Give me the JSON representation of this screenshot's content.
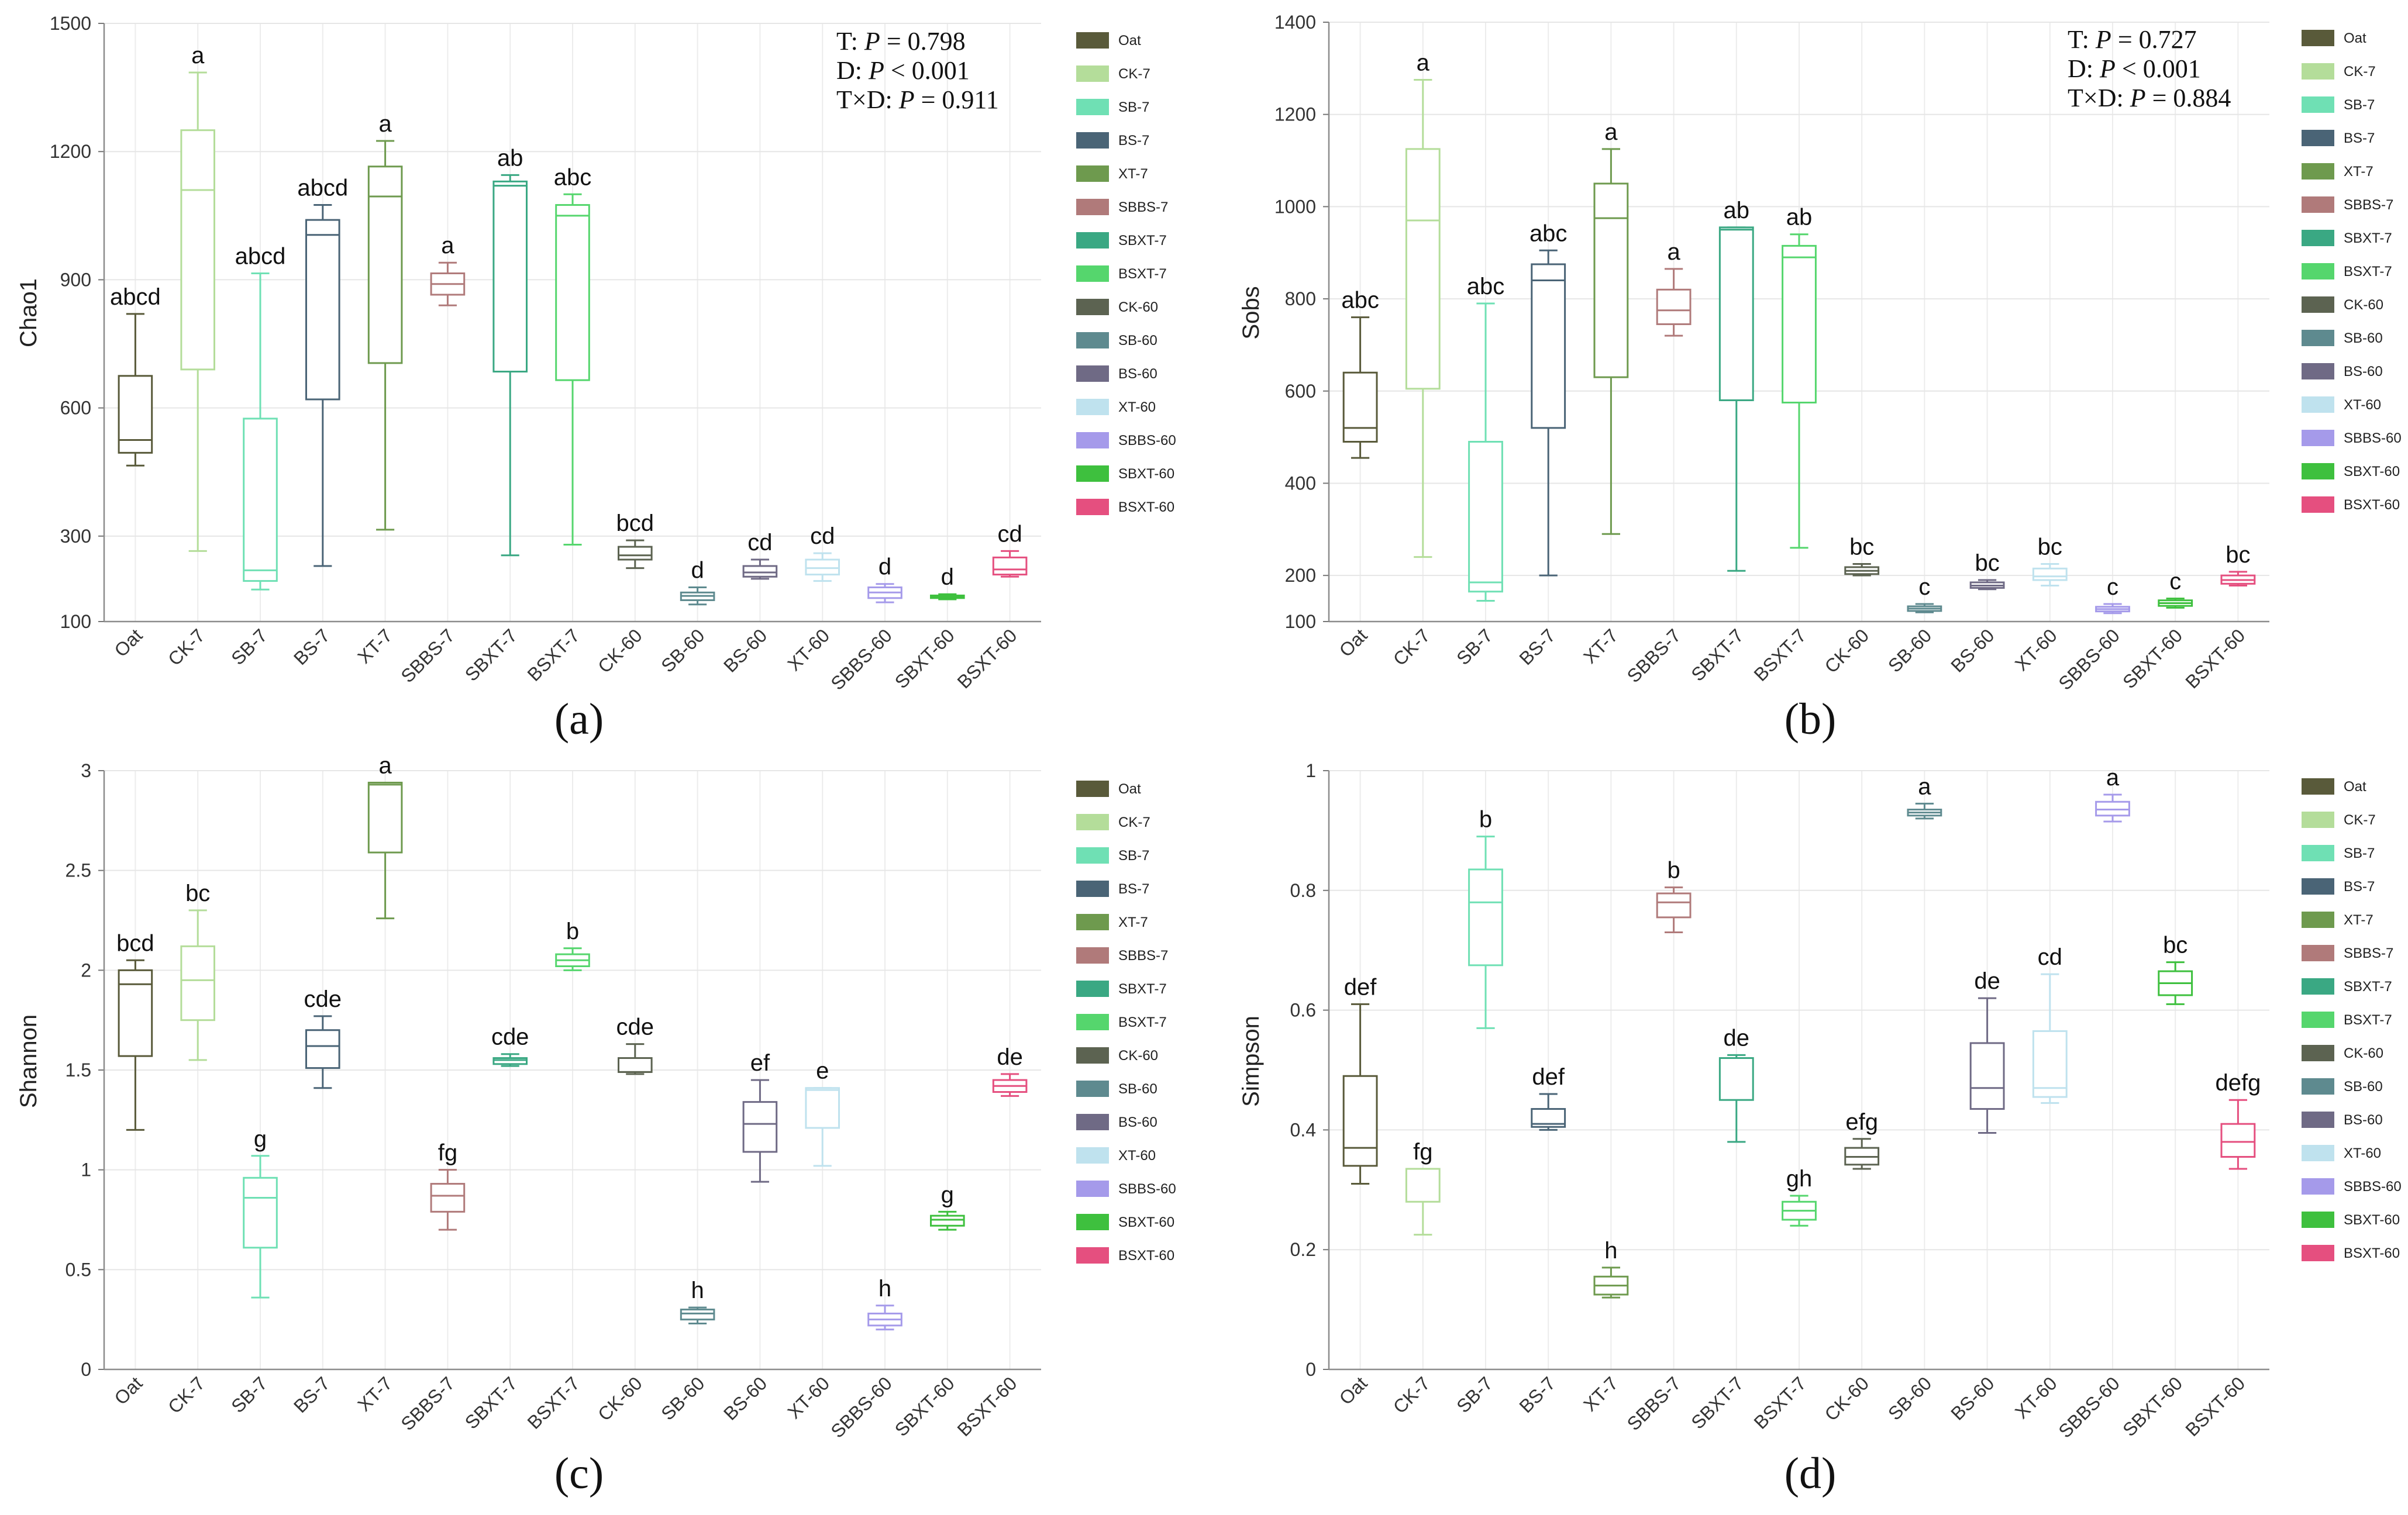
{
  "colors": {
    "Oat": "#595a3a",
    "CK-7": "#b4dd9a",
    "SB-7": "#6fe0b4",
    "BS-7": "#4a6476",
    "XT-7": "#6e9a4e",
    "SBBS-7": "#b07a7a",
    "SBXT-7": "#3aa883",
    "BSXT-7": "#55d66d",
    "CK-60": "#5c6351",
    "SB-60": "#5e8a8f",
    "BS-60": "#6f6a85",
    "XT-60": "#bfe2ee",
    "SBBS-60": "#a59aea",
    "SBXT-60": "#3ec03e",
    "BSXT-60": "#e54f7f"
  },
  "chart_data": [
    {
      "id": "a",
      "type": "box",
      "panel_label": "(a)",
      "ylabel": "Chao1",
      "ylim": [
        100,
        1500
      ],
      "yticks": [
        100,
        300,
        600,
        900,
        1200,
        1500
      ],
      "stats": {
        "l1": "T: ",
        "p1": "P",
        "v1": " = 0.798",
        "l2": "D: ",
        "p2": "P",
        "v2": " < 0.001",
        "l3": "T×D: ",
        "p3": "P",
        "v3": " = 0.911"
      },
      "categories": [
        "Oat",
        "CK-7",
        "SB-7",
        "BS-7",
        "XT-7",
        "SBBS-7",
        "SBXT-7",
        "BSXT-7",
        "CK-60",
        "SB-60",
        "BS-60",
        "XT-60",
        "SBBS-60",
        "SBXT-60",
        "BSXT-60"
      ],
      "boxes": [
        {
          "min": 465,
          "q1": 495,
          "med": 525,
          "q3": 675,
          "max": 820,
          "letter": "abcd"
        },
        {
          "min": 265,
          "q1": 690,
          "med": 1110,
          "q3": 1250,
          "max": 1385,
          "letter": "a"
        },
        {
          "min": 175,
          "q1": 195,
          "med": 220,
          "q3": 575,
          "max": 915,
          "letter": "abcd"
        },
        {
          "min": 230,
          "q1": 620,
          "med": 1005,
          "q3": 1040,
          "max": 1075,
          "letter": "abcd"
        },
        {
          "min": 315,
          "q1": 705,
          "med": 1095,
          "q3": 1165,
          "max": 1225,
          "letter": "a"
        },
        {
          "min": 840,
          "q1": 865,
          "med": 890,
          "q3": 915,
          "max": 940,
          "letter": "a"
        },
        {
          "min": 255,
          "q1": 685,
          "med": 1120,
          "q3": 1130,
          "max": 1145,
          "letter": "ab"
        },
        {
          "min": 280,
          "q1": 665,
          "med": 1050,
          "q3": 1075,
          "max": 1100,
          "letter": "abc"
        },
        {
          "min": 225,
          "q1": 245,
          "med": 255,
          "q3": 275,
          "max": 290,
          "letter": "bcd"
        },
        {
          "min": 140,
          "q1": 150,
          "med": 160,
          "q3": 168,
          "max": 180,
          "letter": "d"
        },
        {
          "min": 200,
          "q1": 205,
          "med": 215,
          "q3": 230,
          "max": 245,
          "letter": "cd"
        },
        {
          "min": 195,
          "q1": 210,
          "med": 225,
          "q3": 245,
          "max": 260,
          "letter": "cd"
        },
        {
          "min": 145,
          "q1": 155,
          "med": 168,
          "q3": 180,
          "max": 188,
          "letter": "d"
        },
        {
          "min": 152,
          "q1": 155,
          "med": 158,
          "q3": 161,
          "max": 164,
          "letter": "d"
        },
        {
          "min": 205,
          "q1": 210,
          "med": 222,
          "q3": 250,
          "max": 265,
          "letter": "cd"
        }
      ]
    },
    {
      "id": "b",
      "type": "box",
      "panel_label": "(b)",
      "ylabel": "Sobs",
      "ylim": [
        100,
        1400
      ],
      "yticks": [
        100,
        200,
        400,
        600,
        800,
        1000,
        1200,
        1400
      ],
      "stats": {
        "l1": "T: ",
        "p1": "P",
        "v1": " = 0.727",
        "l2": "D: ",
        "p2": "P",
        "v2": " < 0.001",
        "l3": "T×D: ",
        "p3": "P",
        "v3": " = 0.884"
      },
      "categories": [
        "Oat",
        "CK-7",
        "SB-7",
        "BS-7",
        "XT-7",
        "SBBS-7",
        "SBXT-7",
        "BSXT-7",
        "CK-60",
        "SB-60",
        "BS-60",
        "XT-60",
        "SBBS-60",
        "SBXT-60",
        "BSXT-60"
      ],
      "boxes": [
        {
          "min": 455,
          "q1": 490,
          "med": 520,
          "q3": 640,
          "max": 760,
          "letter": "abc"
        },
        {
          "min": 240,
          "q1": 605,
          "med": 970,
          "q3": 1125,
          "max": 1275,
          "letter": "a"
        },
        {
          "min": 145,
          "q1": 165,
          "med": 185,
          "q3": 490,
          "max": 790,
          "letter": "abc"
        },
        {
          "min": 200,
          "q1": 520,
          "med": 840,
          "q3": 875,
          "max": 905,
          "letter": "abc"
        },
        {
          "min": 290,
          "q1": 630,
          "med": 975,
          "q3": 1050,
          "max": 1125,
          "letter": "a"
        },
        {
          "min": 720,
          "q1": 745,
          "med": 775,
          "q3": 820,
          "max": 865,
          "letter": "a"
        },
        {
          "min": 210,
          "q1": 580,
          "med": 950,
          "q3": 955,
          "max": 955,
          "letter": "ab"
        },
        {
          "min": 260,
          "q1": 575,
          "med": 890,
          "q3": 915,
          "max": 940,
          "letter": "ab"
        },
        {
          "min": 200,
          "q1": 203,
          "med": 210,
          "q3": 218,
          "max": 225,
          "letter": "bc"
        },
        {
          "min": 120,
          "q1": 123,
          "med": 128,
          "q3": 133,
          "max": 138,
          "letter": "c"
        },
        {
          "min": 170,
          "q1": 173,
          "med": 178,
          "q3": 185,
          "max": 190,
          "letter": "bc"
        },
        {
          "min": 178,
          "q1": 190,
          "med": 198,
          "q3": 215,
          "max": 225,
          "letter": "bc"
        },
        {
          "min": 118,
          "q1": 122,
          "med": 127,
          "q3": 132,
          "max": 138,
          "letter": "c"
        },
        {
          "min": 130,
          "q1": 134,
          "med": 140,
          "q3": 146,
          "max": 150,
          "letter": "c"
        },
        {
          "min": 178,
          "q1": 182,
          "med": 190,
          "q3": 200,
          "max": 208,
          "letter": "bc"
        }
      ]
    },
    {
      "id": "c",
      "type": "box",
      "panel_label": "(c)",
      "ylabel": "Shannon",
      "ylim": [
        0,
        3
      ],
      "yticks": [
        0,
        0.5,
        1,
        1.5,
        2,
        2.5,
        3
      ],
      "categories": [
        "Oat",
        "CK-7",
        "SB-7",
        "BS-7",
        "XT-7",
        "SBBS-7",
        "SBXT-7",
        "BSXT-7",
        "CK-60",
        "SB-60",
        "BS-60",
        "XT-60",
        "SBBS-60",
        "SBXT-60",
        "BSXT-60"
      ],
      "boxes": [
        {
          "min": 1.2,
          "q1": 1.57,
          "med": 1.93,
          "q3": 2.0,
          "max": 2.05,
          "letter": "bcd"
        },
        {
          "min": 1.55,
          "q1": 1.75,
          "med": 1.95,
          "q3": 2.12,
          "max": 2.3,
          "letter": "bc"
        },
        {
          "min": 0.36,
          "q1": 0.61,
          "med": 0.86,
          "q3": 0.96,
          "max": 1.07,
          "letter": "g"
        },
        {
          "min": 1.41,
          "q1": 1.51,
          "med": 1.62,
          "q3": 1.7,
          "max": 1.77,
          "letter": "cde"
        },
        {
          "min": 2.26,
          "q1": 2.59,
          "med": 2.93,
          "q3": 2.94,
          "max": 2.94,
          "letter": "a"
        },
        {
          "min": 0.7,
          "q1": 0.79,
          "med": 0.87,
          "q3": 0.93,
          "max": 1.0,
          "letter": "fg"
        },
        {
          "min": 1.52,
          "q1": 1.53,
          "med": 1.55,
          "q3": 1.56,
          "max": 1.58,
          "letter": "cde"
        },
        {
          "min": 2.0,
          "q1": 2.02,
          "med": 2.05,
          "q3": 2.08,
          "max": 2.11,
          "letter": "b"
        },
        {
          "min": 1.48,
          "q1": 1.49,
          "med": 1.49,
          "q3": 1.56,
          "max": 1.63,
          "letter": "cde"
        },
        {
          "min": 0.23,
          "q1": 0.25,
          "med": 0.28,
          "q3": 0.3,
          "max": 0.31,
          "letter": "h"
        },
        {
          "min": 0.94,
          "q1": 1.09,
          "med": 1.23,
          "q3": 1.34,
          "max": 1.45,
          "letter": "ef"
        },
        {
          "min": 1.02,
          "q1": 1.21,
          "med": 1.4,
          "q3": 1.41,
          "max": 1.41,
          "letter": "e"
        },
        {
          "min": 0.2,
          "q1": 0.22,
          "med": 0.25,
          "q3": 0.28,
          "max": 0.32,
          "letter": "h"
        },
        {
          "min": 0.7,
          "q1": 0.72,
          "med": 0.75,
          "q3": 0.77,
          "max": 0.79,
          "letter": "g"
        },
        {
          "min": 1.37,
          "q1": 1.39,
          "med": 1.42,
          "q3": 1.45,
          "max": 1.48,
          "letter": "de"
        }
      ]
    },
    {
      "id": "d",
      "type": "box",
      "panel_label": "(d)",
      "ylabel": "Simpson",
      "ylim": [
        0,
        1
      ],
      "yticks": [
        0,
        0.2,
        0.4,
        0.6,
        0.8,
        1
      ],
      "categories": [
        "Oat",
        "CK-7",
        "SB-7",
        "BS-7",
        "XT-7",
        "SBBS-7",
        "SBXT-7",
        "BSXT-7",
        "CK-60",
        "SB-60",
        "BS-60",
        "XT-60",
        "SBBS-60",
        "SBXT-60",
        "BSXT-60"
      ],
      "boxes": [
        {
          "min": 0.31,
          "q1": 0.34,
          "med": 0.37,
          "q3": 0.49,
          "max": 0.61,
          "letter": "def"
        },
        {
          "min": 0.225,
          "q1": 0.28,
          "med": 0.335,
          "q3": 0.335,
          "max": 0.335,
          "letter": "fg"
        },
        {
          "min": 0.57,
          "q1": 0.675,
          "med": 0.78,
          "q3": 0.835,
          "max": 0.89,
          "letter": "b"
        },
        {
          "min": 0.4,
          "q1": 0.405,
          "med": 0.41,
          "q3": 0.435,
          "max": 0.46,
          "letter": "def"
        },
        {
          "min": 0.12,
          "q1": 0.125,
          "med": 0.14,
          "q3": 0.155,
          "max": 0.17,
          "letter": "h"
        },
        {
          "min": 0.73,
          "q1": 0.755,
          "med": 0.78,
          "q3": 0.795,
          "max": 0.805,
          "letter": "b"
        },
        {
          "min": 0.38,
          "q1": 0.45,
          "med": 0.52,
          "q3": 0.52,
          "max": 0.525,
          "letter": "de"
        },
        {
          "min": 0.24,
          "q1": 0.25,
          "med": 0.265,
          "q3": 0.28,
          "max": 0.29,
          "letter": "gh"
        },
        {
          "min": 0.335,
          "q1": 0.342,
          "med": 0.355,
          "q3": 0.37,
          "max": 0.385,
          "letter": "efg"
        },
        {
          "min": 0.92,
          "q1": 0.925,
          "med": 0.93,
          "q3": 0.935,
          "max": 0.945,
          "letter": "a"
        },
        {
          "min": 0.395,
          "q1": 0.435,
          "med": 0.47,
          "q3": 0.545,
          "max": 0.62,
          "letter": "de"
        },
        {
          "min": 0.445,
          "q1": 0.455,
          "med": 0.47,
          "q3": 0.565,
          "max": 0.66,
          "letter": "cd"
        },
        {
          "min": 0.915,
          "q1": 0.925,
          "med": 0.935,
          "q3": 0.948,
          "max": 0.96,
          "letter": "a"
        },
        {
          "min": 0.61,
          "q1": 0.625,
          "med": 0.645,
          "q3": 0.665,
          "max": 0.68,
          "letter": "bc"
        },
        {
          "min": 0.335,
          "q1": 0.355,
          "med": 0.38,
          "q3": 0.41,
          "max": 0.45,
          "letter": "defg"
        }
      ]
    }
  ]
}
